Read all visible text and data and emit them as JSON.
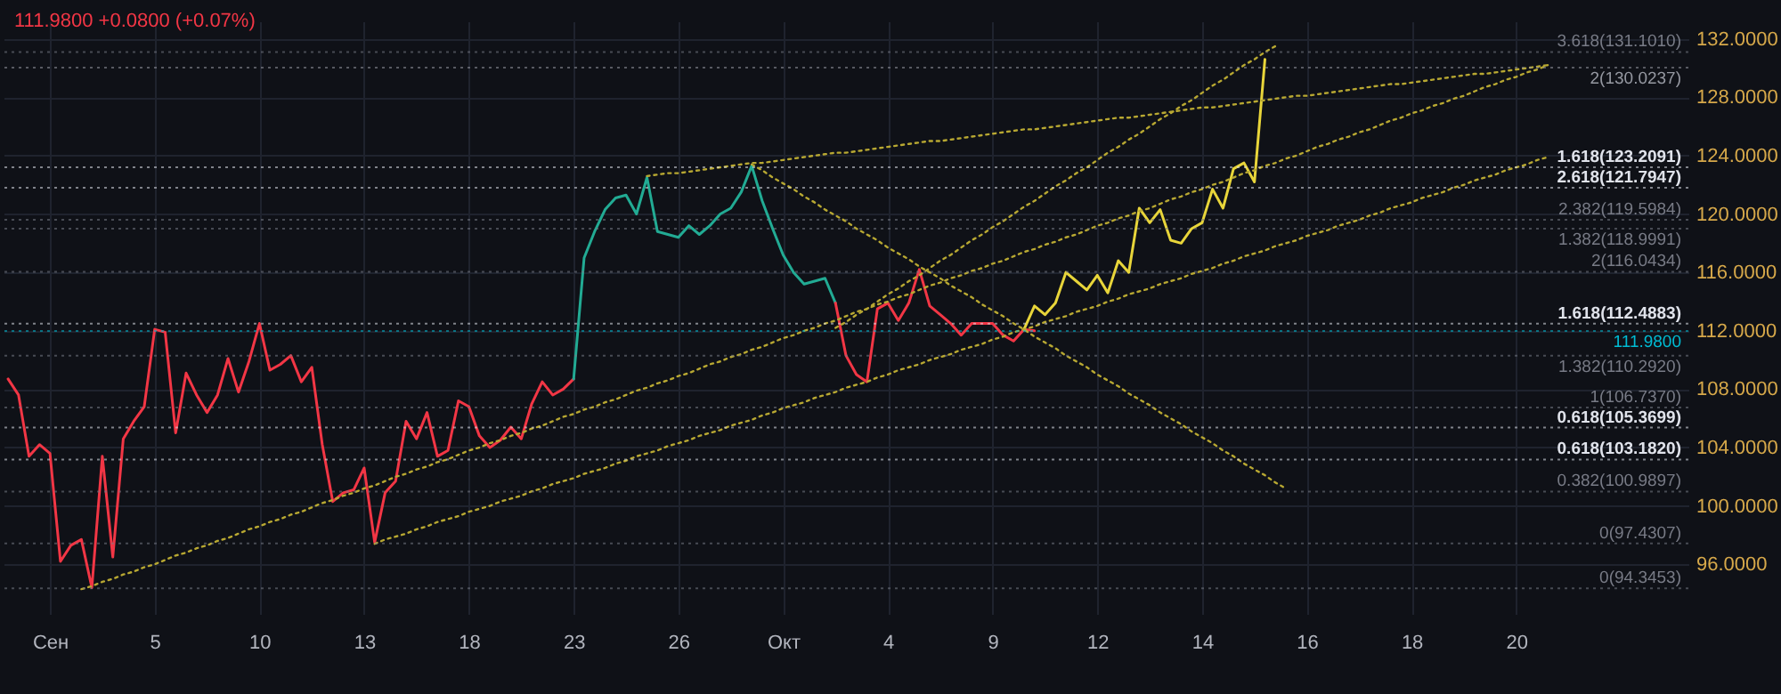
{
  "chart_data": {
    "type": "line",
    "title": "111.9800 +0.0800 (+0.07%)",
    "categories": [
      null,
      null,
      null,
      null,
      "Сен",
      null,
      null,
      null,
      null,
      null,
      null,
      null,
      null,
      null,
      "5",
      null,
      null,
      null,
      null,
      null,
      null,
      null,
      null,
      null,
      "10",
      null,
      null,
      null,
      null,
      null,
      null,
      null,
      null,
      null,
      "13",
      null,
      null,
      null,
      null,
      null,
      null,
      null,
      null,
      null,
      "18",
      null,
      null,
      null,
      null,
      null,
      null,
      null,
      null,
      null,
      "23",
      null,
      null,
      null,
      null,
      null,
      null,
      null,
      null,
      null,
      "26",
      null,
      null,
      null,
      null,
      null,
      null,
      null,
      null,
      null,
      "Окт",
      null,
      null,
      null,
      null,
      null,
      null,
      null,
      null,
      null,
      "4",
      null,
      null,
      null,
      null,
      null,
      null,
      null,
      null,
      null,
      "9",
      null,
      null,
      null,
      null,
      null,
      null,
      null,
      null,
      null,
      "12",
      null,
      null,
      null,
      null,
      null,
      null,
      null,
      null,
      null,
      "14",
      null,
      null,
      null,
      null,
      null,
      null,
      null,
      null,
      null,
      "16",
      null,
      null,
      null,
      null,
      null,
      null,
      null,
      null,
      null,
      "18",
      null,
      null,
      null,
      null,
      null,
      null,
      null,
      null,
      null,
      "20",
      null,
      null,
      null,
      null,
      null,
      null,
      null,
      null,
      null,
      null,
      null,
      null,
      null,
      null,
      null,
      null
    ],
    "ylim": [
      92.6,
      133.2
    ],
    "yticks": [
      {
        "value": 96,
        "label": "96.0000"
      },
      {
        "value": 100,
        "label": "100.0000"
      },
      {
        "value": 104,
        "label": "104.0000"
      },
      {
        "value": 108,
        "label": "108.0000"
      },
      {
        "value": 112,
        "label": "112.0000"
      },
      {
        "value": 116,
        "label": "116.0000"
      },
      {
        "value": 120,
        "label": "120.0000"
      },
      {
        "value": 124,
        "label": "124.0000"
      },
      {
        "value": 128,
        "label": "128.0000"
      },
      {
        "value": 132,
        "label": "132.0000"
      }
    ],
    "grid": true,
    "marker": "none",
    "series": [
      {
        "color": "#f23645",
        "values": [
          108.7,
          107.6,
          103.4,
          104.2,
          103.6,
          96.2,
          97.3,
          97.7,
          94.4,
          103.4,
          96.5,
          104.6,
          105.8,
          106.8,
          112.1,
          111.9,
          105.0,
          109.1,
          107.6,
          106.4,
          107.6,
          110.1,
          107.8,
          109.9,
          112.5,
          109.3,
          109.7,
          110.3,
          108.5,
          109.5,
          104.2,
          100.3,
          100.9,
          101.1,
          102.6,
          97.5,
          100.9,
          101.7,
          105.8,
          104.6,
          106.4,
          103.4,
          103.8,
          107.2,
          106.8,
          104.8,
          104.0,
          104.5,
          105.4,
          104.6,
          107.0,
          108.5,
          107.6,
          108.0,
          108.7,
          null,
          null,
          null,
          null,
          null,
          null,
          null,
          null,
          null,
          null,
          null,
          null,
          null,
          null,
          null,
          null,
          null,
          null,
          null,
          null,
          null,
          null,
          null,
          null,
          null,
          null,
          null,
          null,
          null,
          null,
          null,
          null,
          null,
          null,
          null,
          null,
          null,
          null,
          null,
          null,
          null,
          null,
          null,
          null,
          null,
          null,
          null,
          null,
          null,
          null,
          null,
          null,
          null,
          null,
          null,
          null,
          null,
          null,
          null,
          null,
          null,
          null,
          null,
          null,
          null,
          null,
          null,
          null,
          null,
          null,
          null,
          null,
          null,
          null,
          null,
          null,
          null,
          null,
          null,
          null,
          null,
          null,
          null,
          null,
          null,
          null,
          null,
          null,
          null,
          null,
          null,
          null,
          null,
          null,
          null,
          null,
          null,
          null,
          null,
          null,
          null,
          null,
          null,
          null,
          null,
          null
        ]
      },
      {
        "color": "#22ab94",
        "values": [
          null,
          null,
          null,
          null,
          null,
          null,
          null,
          null,
          null,
          null,
          null,
          null,
          null,
          null,
          null,
          null,
          null,
          null,
          null,
          null,
          null,
          null,
          null,
          null,
          null,
          null,
          null,
          null,
          null,
          null,
          null,
          null,
          null,
          null,
          null,
          null,
          null,
          null,
          null,
          null,
          null,
          null,
          null,
          null,
          null,
          null,
          null,
          null,
          null,
          null,
          null,
          null,
          null,
          null,
          108.7,
          117.0,
          118.8,
          120.3,
          121.1,
          121.3,
          120.0,
          122.5,
          118.8,
          118.6,
          118.4,
          119.2,
          118.6,
          119.2,
          120.0,
          120.4,
          121.5,
          123.3,
          120.9,
          119.0,
          117.2,
          116.0,
          115.2,
          115.4,
          115.6,
          113.9,
          null,
          null,
          null,
          null,
          null,
          null,
          null,
          null,
          null,
          null,
          null,
          null,
          null,
          null,
          null,
          null,
          null,
          null,
          null,
          null,
          null,
          null,
          null,
          null,
          null,
          null,
          null,
          null,
          null,
          null,
          null,
          null,
          null,
          null,
          null,
          null,
          null,
          null,
          null,
          null,
          null,
          null,
          null,
          null,
          null,
          null,
          null,
          null,
          null,
          null,
          null,
          null,
          null,
          null,
          null,
          null,
          null,
          null,
          null,
          null,
          null,
          null,
          null,
          null,
          null,
          null,
          null,
          null,
          null,
          null,
          null,
          null,
          null,
          null,
          null,
          null,
          null,
          null,
          null,
          null,
          null
        ]
      },
      {
        "color": "#f23645",
        "values": [
          null,
          null,
          null,
          null,
          null,
          null,
          null,
          null,
          null,
          null,
          null,
          null,
          null,
          null,
          null,
          null,
          null,
          null,
          null,
          null,
          null,
          null,
          null,
          null,
          null,
          null,
          null,
          null,
          null,
          null,
          null,
          null,
          null,
          null,
          null,
          null,
          null,
          null,
          null,
          null,
          null,
          null,
          null,
          null,
          null,
          null,
          null,
          null,
          null,
          null,
          null,
          null,
          null,
          null,
          null,
          null,
          null,
          null,
          null,
          null,
          null,
          null,
          null,
          null,
          null,
          null,
          null,
          null,
          null,
          null,
          null,
          null,
          null,
          null,
          null,
          null,
          null,
          null,
          null,
          113.9,
          110.3,
          109.0,
          108.5,
          113.5,
          113.9,
          112.7,
          113.9,
          116.2,
          113.7,
          113.1,
          112.5,
          111.7,
          112.5,
          112.5,
          112.5,
          111.7,
          111.3,
          112.1,
          112.0,
          null,
          null,
          null,
          null,
          null,
          null,
          null,
          null,
          null,
          null,
          null,
          null,
          null,
          null,
          null,
          null,
          null,
          null,
          null,
          null,
          null,
          null,
          null,
          null,
          null,
          null,
          null,
          null,
          null,
          null,
          null,
          null,
          null,
          null,
          null,
          null,
          null,
          null,
          null,
          null,
          null,
          null,
          null,
          null,
          null,
          null,
          null,
          null,
          null,
          null,
          null,
          null,
          null,
          null,
          null,
          null,
          null,
          null,
          null,
          null,
          null,
          null
        ]
      },
      {
        "color": "#e8d53a",
        "values": [
          null,
          null,
          null,
          null,
          null,
          null,
          null,
          null,
          null,
          null,
          null,
          null,
          null,
          null,
          null,
          null,
          null,
          null,
          null,
          null,
          null,
          null,
          null,
          null,
          null,
          null,
          null,
          null,
          null,
          null,
          null,
          null,
          null,
          null,
          null,
          null,
          null,
          null,
          null,
          null,
          null,
          null,
          null,
          null,
          null,
          null,
          null,
          null,
          null,
          null,
          null,
          null,
          null,
          null,
          null,
          null,
          null,
          null,
          null,
          null,
          null,
          null,
          null,
          null,
          null,
          null,
          null,
          null,
          null,
          null,
          null,
          null,
          null,
          null,
          null,
          null,
          null,
          null,
          null,
          null,
          null,
          null,
          null,
          null,
          null,
          null,
          null,
          null,
          null,
          null,
          null,
          null,
          null,
          null,
          null,
          null,
          null,
          112.1,
          113.7,
          113.1,
          113.9,
          116.0,
          115.4,
          114.8,
          115.8,
          114.6,
          116.8,
          116.0,
          120.4,
          119.4,
          120.3,
          118.2,
          118.0,
          119.0,
          119.4,
          121.7,
          120.4,
          123.1,
          123.5,
          122.2,
          130.6,
          null,
          null,
          null,
          null,
          null,
          null,
          null,
          null,
          null,
          null,
          null,
          null,
          null,
          null,
          null,
          null,
          null,
          null,
          null,
          null,
          null,
          null,
          null,
          null,
          null,
          null,
          null,
          null,
          null,
          null,
          null,
          null,
          null,
          null,
          null,
          null,
          null,
          null,
          null,
          null
        ]
      },
      {
        "color": "#b8a832",
        "line_style": "dotted",
        "values": [
          null,
          null,
          null,
          null,
          null,
          null,
          null,
          94.3,
          94.5,
          94.8,
          95.0,
          95.3,
          95.5,
          95.8,
          96.0,
          96.3,
          96.6,
          96.8,
          97.1,
          97.3,
          97.6,
          97.8,
          98.1,
          98.4,
          98.6,
          98.9,
          99.1,
          99.4,
          99.6,
          99.9,
          100.2,
          100.4,
          100.7,
          100.9,
          101.2,
          101.4,
          101.7,
          102.0,
          102.2,
          102.5,
          102.7,
          103.0,
          103.2,
          103.5,
          103.8,
          104.0,
          104.3,
          104.5,
          104.8,
          105.0,
          105.3,
          105.5,
          105.8,
          106.1,
          106.3,
          106.6,
          106.8,
          107.1,
          107.3,
          107.6,
          107.9,
          108.1,
          108.4,
          108.6,
          108.9,
          109.1,
          109.4,
          109.7,
          109.9,
          110.2,
          110.4,
          110.7,
          110.9,
          111.2,
          111.5,
          111.7,
          112.0,
          112.2,
          112.5,
          112.7,
          113.0,
          113.3,
          113.5,
          113.8,
          114.0,
          114.3,
          114.5,
          114.8,
          115.1,
          115.3,
          115.6,
          115.8,
          116.1,
          116.3,
          116.6,
          116.8,
          117.1,
          117.4,
          117.6,
          117.9,
          118.1,
          118.4,
          118.6,
          118.9,
          119.2,
          119.4,
          119.7,
          119.9,
          120.2,
          120.4,
          120.7,
          121.0,
          121.2,
          121.5,
          121.7,
          122.0,
          122.2,
          122.5,
          122.8,
          123.0,
          123.3,
          123.5,
          123.8,
          124.0,
          124.3,
          124.6,
          124.8,
          125.1,
          125.3,
          125.6,
          125.8,
          126.1,
          126.4,
          126.6,
          126.9,
          127.1,
          127.4,
          127.6,
          127.9,
          128.1,
          128.4,
          128.7,
          128.9,
          129.2,
          129.4,
          129.7,
          129.9,
          130.2,
          null,
          null,
          null,
          null,
          null,
          null,
          null,
          null,
          null,
          null,
          null,
          null,
          null
        ]
      },
      {
        "color": "#b8a832",
        "line_style": "dotted",
        "values": [
          null,
          null,
          null,
          null,
          null,
          null,
          null,
          null,
          null,
          null,
          null,
          null,
          null,
          null,
          null,
          null,
          null,
          null,
          null,
          null,
          null,
          null,
          null,
          null,
          null,
          null,
          null,
          null,
          null,
          null,
          null,
          null,
          null,
          null,
          null,
          97.4,
          97.7,
          97.9,
          98.1,
          98.4,
          98.6,
          98.9,
          99.1,
          99.3,
          99.6,
          99.8,
          100.0,
          100.3,
          100.5,
          100.7,
          101.0,
          101.2,
          101.5,
          101.7,
          101.9,
          102.2,
          102.4,
          102.6,
          102.9,
          103.1,
          103.4,
          103.6,
          103.8,
          104.1,
          104.3,
          104.5,
          104.8,
          105.0,
          105.2,
          105.5,
          105.7,
          105.9,
          106.2,
          106.4,
          106.7,
          106.9,
          107.1,
          107.4,
          107.6,
          107.8,
          108.1,
          108.3,
          108.5,
          108.8,
          109.0,
          109.3,
          109.5,
          109.7,
          110.0,
          110.2,
          110.4,
          110.7,
          110.9,
          111.1,
          111.4,
          111.6,
          111.9,
          112.1,
          112.3,
          112.6,
          112.8,
          113.0,
          113.3,
          113.5,
          113.7,
          114.0,
          114.2,
          114.5,
          114.7,
          114.9,
          115.2,
          115.4,
          115.6,
          115.9,
          116.1,
          116.3,
          116.6,
          116.8,
          117.1,
          117.3,
          117.5,
          117.8,
          118.0,
          118.2,
          118.5,
          118.7,
          118.9,
          119.2,
          119.4,
          119.6,
          119.9,
          120.1,
          120.4,
          120.6,
          120.8,
          121.1,
          121.3,
          121.5,
          121.8,
          122.0,
          122.3,
          122.5,
          122.7,
          123.0,
          123.2,
          123.4,
          123.7,
          123.9,
          null,
          null,
          null,
          null,
          null,
          null,
          null,
          null,
          null,
          null,
          null,
          null,
          null
        ]
      },
      {
        "color": "#b8a832",
        "line_style": "dotted",
        "values": [
          null,
          null,
          null,
          null,
          null,
          null,
          null,
          null,
          null,
          null,
          null,
          null,
          null,
          null,
          null,
          null,
          null,
          null,
          null,
          null,
          null,
          null,
          null,
          null,
          null,
          null,
          null,
          null,
          null,
          null,
          null,
          null,
          null,
          null,
          null,
          null,
          null,
          null,
          null,
          null,
          null,
          null,
          null,
          null,
          null,
          null,
          null,
          null,
          null,
          null,
          null,
          null,
          null,
          null,
          null,
          null,
          null,
          null,
          null,
          null,
          null,
          null,
          null,
          null,
          null,
          null,
          null,
          null,
          null,
          null,
          null,
          null,
          null,
          null,
          null,
          null,
          null,
          null,
          null,
          112.2,
          112.6,
          113.1,
          113.5,
          114.0,
          114.5,
          114.9,
          115.4,
          115.8,
          116.3,
          116.8,
          117.2,
          117.7,
          118.2,
          118.6,
          119.1,
          119.5,
          120.0,
          120.5,
          120.9,
          121.4,
          121.9,
          122.3,
          122.8,
          123.2,
          123.7,
          124.2,
          124.6,
          125.1,
          125.5,
          126.0,
          126.5,
          126.9,
          127.4,
          127.8,
          128.3,
          128.8,
          129.2,
          129.7,
          130.2,
          130.6,
          131.1,
          131.5,
          null,
          null,
          null,
          null,
          null,
          null,
          null,
          null,
          null,
          null,
          null,
          null,
          null,
          null,
          null,
          null,
          null,
          null,
          null,
          null,
          null,
          null,
          null,
          null,
          null,
          null,
          null,
          null,
          null,
          null,
          null,
          null,
          null,
          null,
          null,
          null,
          null,
          null,
          null
        ]
      },
      {
        "color": "#b8a832",
        "line_style": "dotted",
        "values": [
          null,
          null,
          null,
          null,
          null,
          null,
          null,
          null,
          null,
          null,
          null,
          null,
          null,
          null,
          null,
          null,
          null,
          null,
          null,
          null,
          null,
          null,
          null,
          null,
          null,
          null,
          null,
          null,
          null,
          null,
          null,
          null,
          null,
          null,
          null,
          null,
          null,
          null,
          null,
          null,
          null,
          null,
          null,
          null,
          null,
          null,
          null,
          null,
          null,
          null,
          null,
          null,
          null,
          null,
          null,
          null,
          null,
          null,
          null,
          null,
          null,
          122.6,
          122.7,
          122.8,
          122.8,
          122.9,
          123.0,
          123.1,
          123.2,
          123.3,
          123.4,
          123.5,
          123.5,
          123.6,
          123.7,
          123.8,
          123.9,
          124.0,
          124.1,
          124.2,
          124.2,
          124.3,
          124.4,
          124.5,
          124.6,
          124.7,
          124.8,
          124.9,
          125.0,
          125.0,
          125.1,
          125.2,
          125.3,
          125.4,
          125.5,
          125.6,
          125.7,
          125.8,
          125.8,
          125.9,
          126.0,
          126.1,
          126.2,
          126.3,
          126.4,
          126.5,
          126.6,
          126.6,
          126.7,
          126.8,
          126.9,
          127.0,
          127.1,
          127.2,
          127.3,
          127.3,
          127.4,
          127.5,
          127.6,
          127.7,
          127.8,
          127.9,
          128.0,
          128.1,
          128.1,
          128.2,
          128.3,
          128.4,
          128.5,
          128.6,
          128.7,
          128.8,
          128.9,
          128.9,
          129.0,
          129.1,
          129.2,
          129.3,
          129.4,
          129.5,
          129.6,
          129.6,
          129.7,
          129.8,
          129.9,
          130.0,
          130.1,
          130.2,
          null,
          null,
          null,
          null,
          null,
          null,
          null,
          null,
          null,
          null,
          null,
          null,
          null
        ]
      },
      {
        "color": "#b8a832",
        "line_style": "dotted",
        "values": [
          null,
          null,
          null,
          null,
          null,
          null,
          null,
          null,
          null,
          null,
          null,
          null,
          null,
          null,
          null,
          null,
          null,
          null,
          null,
          null,
          null,
          null,
          null,
          null,
          null,
          null,
          null,
          null,
          null,
          null,
          null,
          null,
          null,
          null,
          null,
          null,
          null,
          null,
          null,
          null,
          null,
          null,
          null,
          null,
          null,
          null,
          null,
          null,
          null,
          null,
          null,
          null,
          null,
          null,
          null,
          null,
          null,
          null,
          null,
          null,
          null,
          null,
          null,
          null,
          null,
          null,
          null,
          null,
          null,
          null,
          null,
          123.4,
          123.0,
          122.5,
          122.1,
          121.7,
          121.2,
          120.8,
          120.3,
          119.9,
          119.5,
          119.0,
          118.6,
          118.2,
          117.7,
          117.3,
          116.9,
          116.4,
          116.0,
          115.6,
          115.1,
          114.7,
          114.3,
          113.8,
          113.4,
          113.0,
          112.5,
          112.1,
          111.6,
          111.2,
          110.8,
          110.3,
          109.9,
          109.5,
          109.0,
          108.6,
          108.2,
          107.7,
          107.3,
          106.9,
          106.4,
          106.0,
          105.6,
          105.1,
          104.7,
          104.3,
          103.8,
          103.4,
          102.9,
          102.5,
          102.1,
          101.6,
          101.2,
          null,
          null,
          null,
          null,
          null,
          null,
          null,
          null,
          null,
          null,
          null,
          null,
          null,
          null,
          null,
          null,
          null,
          null,
          null,
          null,
          null,
          null,
          null,
          null,
          null,
          null,
          null,
          null,
          null,
          null,
          null,
          null,
          null,
          null,
          null,
          null,
          null,
          null
        ]
      }
    ],
    "ref_lines": [
      {
        "axis": "y",
        "value": 131.101,
        "label": "3.618(131.1010)",
        "color": "#787b86",
        "line_style": "dotted"
      },
      {
        "axis": "y",
        "value": 130.0237,
        "label": "2(130.0237)",
        "color": "#9598a1",
        "line_style": "dotted"
      },
      {
        "axis": "y",
        "value": 123.2091,
        "label": "1.618(123.2091)",
        "color": "#e0e3eb",
        "line_style": "dotted"
      },
      {
        "axis": "y",
        "value": 121.7947,
        "label": "2.618(121.7947)",
        "color": "#e0e3eb",
        "line_style": "dotted"
      },
      {
        "axis": "y",
        "value": 119.5984,
        "label": "2.382(119.5984)",
        "color": "#787b86",
        "line_style": "dotted"
      },
      {
        "axis": "y",
        "value": 118.9991,
        "label": "1.382(118.9991)",
        "color": "#787b86",
        "line_style": "dotted"
      },
      {
        "axis": "y",
        "value": 116.0434,
        "label": "2(116.0434)",
        "color": "#787b86",
        "line_style": "dotted"
      },
      {
        "axis": "y",
        "value": 112.4883,
        "label": "1.618(112.4883)",
        "color": "#e0e3eb",
        "line_style": "dotted"
      },
      {
        "axis": "y",
        "value": 111.98,
        "label": "111.9800",
        "color": "#00bcd4",
        "line_style": "dotted"
      },
      {
        "axis": "y",
        "value": 110.292,
        "label": "1.382(110.2920)",
        "color": "#787b86",
        "line_style": "dotted"
      },
      {
        "axis": "y",
        "value": 106.737,
        "label": "1(106.7370)",
        "color": "#787b86",
        "line_style": "dotted"
      },
      {
        "axis": "y",
        "value": 105.3699,
        "label": "0.618(105.3699)",
        "color": "#e0e3eb",
        "line_style": "dotted"
      },
      {
        "axis": "y",
        "value": 103.182,
        "label": "0.618(103.1820)",
        "color": "#e0e3eb",
        "line_style": "dotted"
      },
      {
        "axis": "y",
        "value": 100.9897,
        "label": "0.382(100.9897)",
        "color": "#787b86",
        "line_style": "dotted"
      },
      {
        "axis": "y",
        "value": 97.4307,
        "label": "0(97.4307)",
        "color": "#787b86",
        "line_style": "dotted"
      },
      {
        "axis": "y",
        "value": 94.3453,
        "label": "0(94.3453)",
        "color": "#787b86",
        "line_style": "dotted"
      }
    ]
  }
}
